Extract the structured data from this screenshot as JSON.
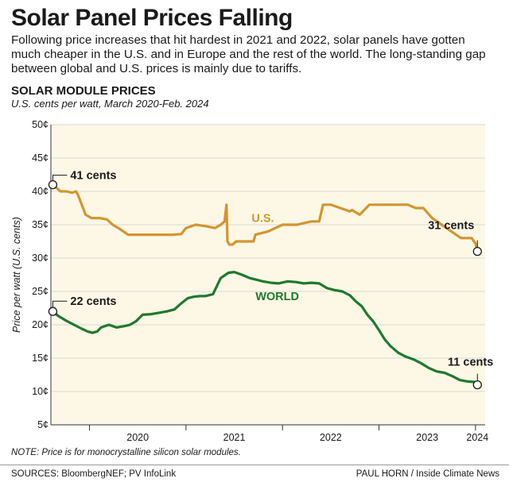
{
  "header": {
    "title": "Solar Panel Prices Falling",
    "intro": "Following price increases that hit hardest in 2021 and 2022, solar panels have gotten much cheaper in the U.S. and in Europe and the rest of the world. The long-standing gap between global and U.S. prices is mainly due to tariffs.",
    "section_title": "SOLAR MODULE PRICES",
    "units": "U.S. cents per watt, March 2020-Feb. 2024"
  },
  "chart_data": {
    "type": "line",
    "title": "SOLAR MODULE PRICES",
    "subtitle": "U.S. cents per watt, March 2020-Feb. 2024",
    "ylabel": "Price per watt (U.S. cents)",
    "xlabel": "",
    "ylim": [
      5,
      50
    ],
    "xlim": [
      2019.6,
      2024.1
    ],
    "y_ticks": [
      5,
      10,
      15,
      20,
      25,
      30,
      35,
      40,
      45,
      50
    ],
    "y_tick_labels": [
      "5¢",
      "10¢",
      "15¢",
      "20¢",
      "25¢",
      "30¢",
      "35¢",
      "40¢",
      "45¢",
      "50¢"
    ],
    "x_ticks": [
      2020,
      2021,
      2022,
      2023,
      2024
    ],
    "x_tick_labels": [
      "2020",
      "2021",
      "2022",
      "2023",
      "2024"
    ],
    "grid": true,
    "series": [
      {
        "name": "U.S.",
        "color": "#d4952f",
        "x": [
          2019.62,
          2019.66,
          2019.7,
          2019.76,
          2019.82,
          2019.86,
          2019.88,
          2019.92,
          2019.96,
          2020.02,
          2020.1,
          2020.18,
          2020.24,
          2020.3,
          2020.4,
          2020.55,
          2020.7,
          2020.85,
          2020.95,
          2021.0,
          2021.1,
          2021.2,
          2021.3,
          2021.36,
          2021.4,
          2021.42,
          2021.43,
          2021.45,
          2021.48,
          2021.52,
          2021.6,
          2021.7,
          2021.72,
          2021.85,
          2022.0,
          2022.15,
          2022.3,
          2022.38,
          2022.42,
          2022.5,
          2022.6,
          2022.7,
          2022.72,
          2022.8,
          2022.9,
          2023.0,
          2023.05,
          2023.08,
          2023.14,
          2023.22,
          2023.3,
          2023.38,
          2023.46,
          2023.55,
          2023.65,
          2023.75,
          2023.85,
          2023.96,
          2024.0,
          2024.02
        ],
        "values": [
          41,
          40.5,
          40,
          40,
          39.8,
          40,
          39.5,
          38,
          36.5,
          36,
          36,
          35.8,
          35,
          34.5,
          33.5,
          33.5,
          33.5,
          33.5,
          33.6,
          34.5,
          35,
          34.8,
          34.5,
          35,
          35.5,
          38,
          32.5,
          32,
          32,
          32.5,
          32.5,
          32.5,
          33.5,
          34,
          35,
          35,
          35.5,
          35.5,
          38,
          38,
          37.5,
          37,
          37.2,
          36.5,
          38,
          38,
          38,
          38,
          38,
          38,
          38,
          37.5,
          37.5,
          36,
          35,
          34,
          33,
          33,
          32.2,
          31
        ]
      },
      {
        "name": "WORLD",
        "color": "#1e7a2e",
        "x": [
          2019.62,
          2019.68,
          2019.76,
          2019.84,
          2019.92,
          2019.98,
          2020.03,
          2020.08,
          2020.12,
          2020.2,
          2020.28,
          2020.36,
          2020.42,
          2020.48,
          2020.55,
          2020.64,
          2020.72,
          2020.8,
          2020.88,
          2020.95,
          2021.02,
          2021.08,
          2021.14,
          2021.2,
          2021.28,
          2021.36,
          2021.44,
          2021.5,
          2021.58,
          2021.66,
          2021.72,
          2021.8,
          2021.88,
          2021.96,
          2022.05,
          2022.14,
          2022.22,
          2022.3,
          2022.38,
          2022.46,
          2022.54,
          2022.62,
          2022.7,
          2022.76,
          2022.82,
          2022.88,
          2022.94,
          2023.0,
          2023.06,
          2023.12,
          2023.2,
          2023.28,
          2023.36,
          2023.44,
          2023.52,
          2023.6,
          2023.68,
          2023.76,
          2023.84,
          2023.92,
          2024.0,
          2024.02
        ],
        "values": [
          22,
          21.3,
          20.6,
          20,
          19.4,
          19,
          18.8,
          19,
          19.6,
          20,
          19.6,
          19.8,
          20,
          20.5,
          21.5,
          21.6,
          21.8,
          22,
          22.3,
          23.2,
          24,
          24.2,
          24.3,
          24.3,
          24.6,
          27,
          27.8,
          27.9,
          27.5,
          27,
          26.8,
          26.5,
          26.3,
          26.2,
          26.5,
          26.4,
          26.2,
          26.3,
          26.2,
          25.5,
          25.2,
          25,
          24.4,
          23.5,
          22.8,
          21.5,
          20.5,
          19.2,
          17.8,
          16.8,
          15.8,
          15.2,
          14.8,
          14.2,
          13.5,
          13,
          12.8,
          12.3,
          11.7,
          11.5,
          11.4,
          11
        ]
      }
    ],
    "annotations": [
      {
        "text": "41 cents",
        "x": 2019.62,
        "y": 41
      },
      {
        "text": "22 cents",
        "x": 2019.62,
        "y": 22
      },
      {
        "text": "31 cents",
        "x": 2024.02,
        "y": 31
      },
      {
        "text": "11 cents",
        "x": 2024.02,
        "y": 11
      },
      {
        "text": "U.S.",
        "x": 2021.68,
        "y": 35.4
      },
      {
        "text": "WORLD",
        "x": 2021.72,
        "y": 23.7
      }
    ]
  },
  "footer": {
    "note": "NOTE: Price is for monocrystalline silicon solar modules.",
    "sources": "SOURCES: BloombergNEF; PV InfoLink",
    "credit": "PAUL HORN / Inside Climate News"
  },
  "colors": {
    "plot_background": "#fdf8e6",
    "grid": "#d8d8d8",
    "us_line": "#d4952f",
    "world_line": "#1e7a2e"
  }
}
